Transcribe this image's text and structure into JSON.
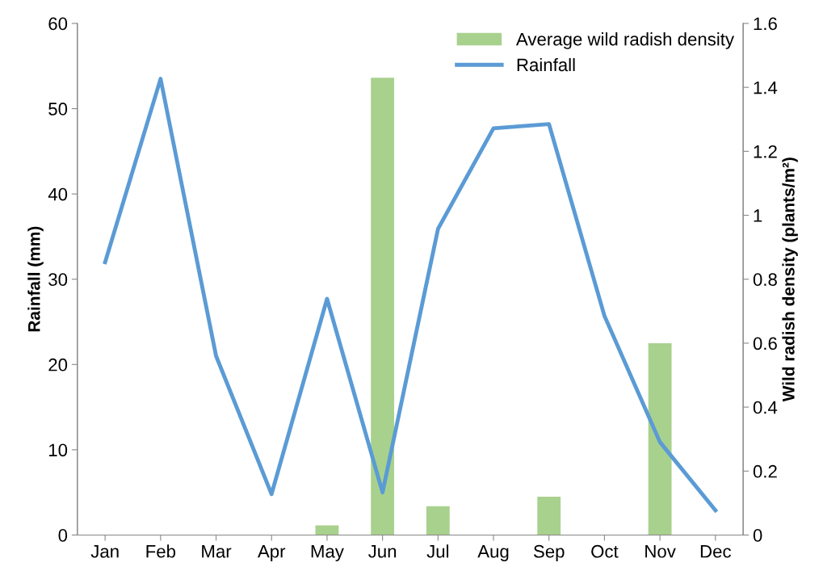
{
  "chart_data": {
    "type": "bar",
    "categories": [
      "Jan",
      "Feb",
      "Mar",
      "Apr",
      "May",
      "Jun",
      "Jul",
      "Aug",
      "Sep",
      "Oct",
      "Nov",
      "Dec"
    ],
    "series": [
      {
        "name": "Average wild radish density",
        "axis": "y2",
        "color": "#a9d18e",
        "values": [
          0,
          0,
          0,
          0,
          0.03,
          1.43,
          0.09,
          0,
          0.12,
          0,
          0.6,
          0
        ]
      },
      {
        "name": "Rainfall",
        "type": "line",
        "axis": "y",
        "color": "#5b9bd5",
        "values": [
          32,
          53.5,
          21,
          4.8,
          27.7,
          5,
          35.9,
          47.7,
          48.2,
          25.7,
          10.9,
          2.9
        ]
      }
    ],
    "ylabel": "Rainfall (mm)",
    "y2label": "Wild radish density (plants/m²)",
    "ylim": [
      0,
      60
    ],
    "yticks": [
      0,
      10,
      20,
      30,
      40,
      50,
      60
    ],
    "y2lim": [
      0,
      1.6
    ],
    "y2ticks": [
      0,
      {
        "value": 0.2,
        "label": "0.2"
      },
      {
        "value": 0.4,
        "label": "0.4"
      },
      {
        "value": 0.6,
        "label": "0.6"
      },
      {
        "value": 0.8,
        "label": "0.8"
      },
      1,
      {
        "value": 1.2,
        "label": "1.2"
      },
      {
        "value": 1.4,
        "label": "1.4"
      },
      {
        "value": 1.6,
        "label": "1.6"
      }
    ],
    "legend": "top right",
    "grid": false,
    "marker": "none",
    "line_style": "solid"
  }
}
